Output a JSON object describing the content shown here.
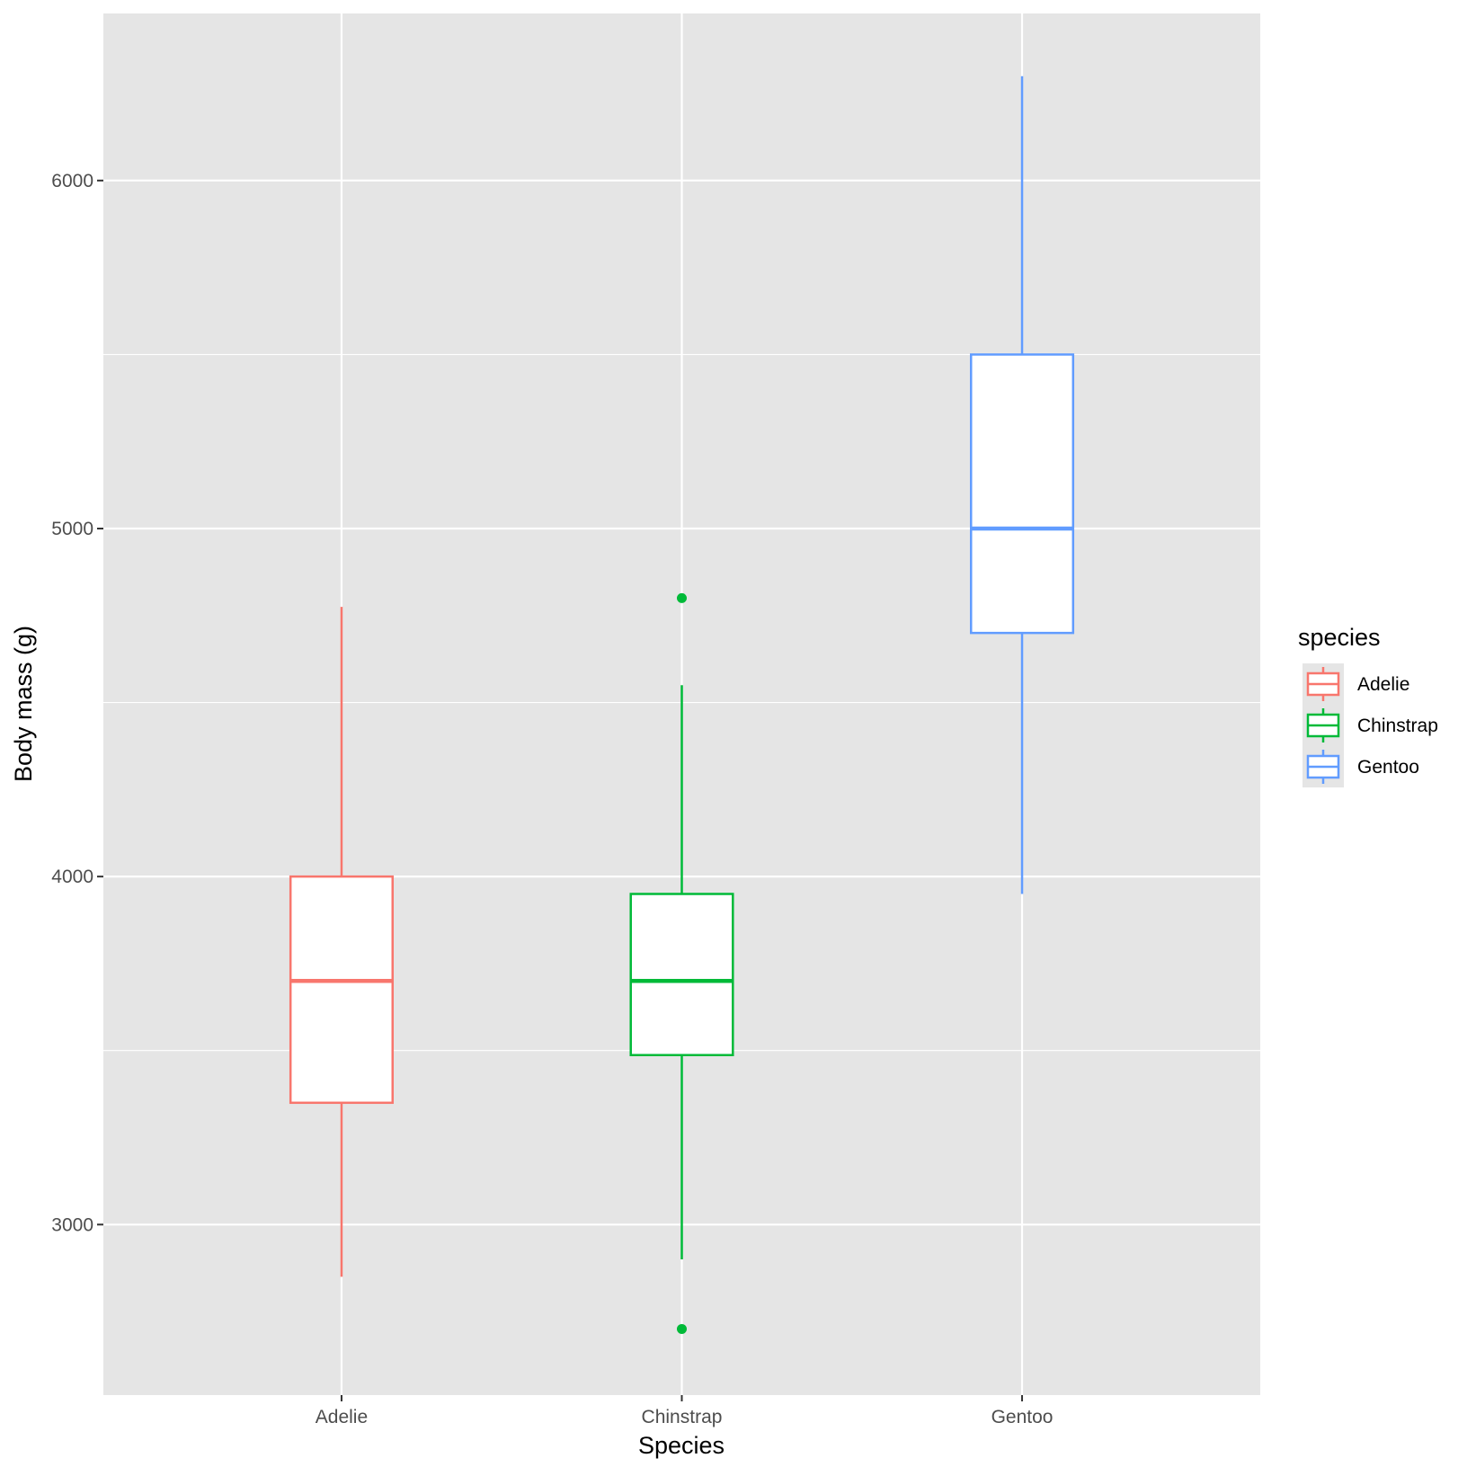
{
  "chart_data": {
    "type": "boxplot",
    "title": "",
    "xlabel": "Species",
    "ylabel": "Body mass (g)",
    "ylim": [
      2510,
      6480
    ],
    "yticks": [
      3000,
      4000,
      5000,
      6000
    ],
    "y_minor_ticks": [
      3500,
      4500,
      5500
    ],
    "categories": [
      "Adelie",
      "Chinstrap",
      "Gentoo"
    ],
    "grid": true,
    "background": "#e5e5e5",
    "legend": {
      "title": "species",
      "position": "right",
      "entries": [
        "Adelie",
        "Chinstrap",
        "Gentoo"
      ]
    },
    "series": [
      {
        "name": "Adelie",
        "color": "#f8766d",
        "whisker_low": 2850,
        "q1": 3350,
        "median": 3700,
        "q3": 4000,
        "whisker_high": 4775,
        "outliers": []
      },
      {
        "name": "Chinstrap",
        "color": "#00ba38",
        "whisker_low": 2900,
        "q1": 3487,
        "median": 3700,
        "q3": 3950,
        "whisker_high": 4550,
        "outliers": [
          2700,
          4800
        ]
      },
      {
        "name": "Gentoo",
        "color": "#619cff",
        "whisker_low": 3950,
        "q1": 4700,
        "median": 5000,
        "q3": 5500,
        "whisker_high": 6300,
        "outliers": []
      }
    ]
  }
}
